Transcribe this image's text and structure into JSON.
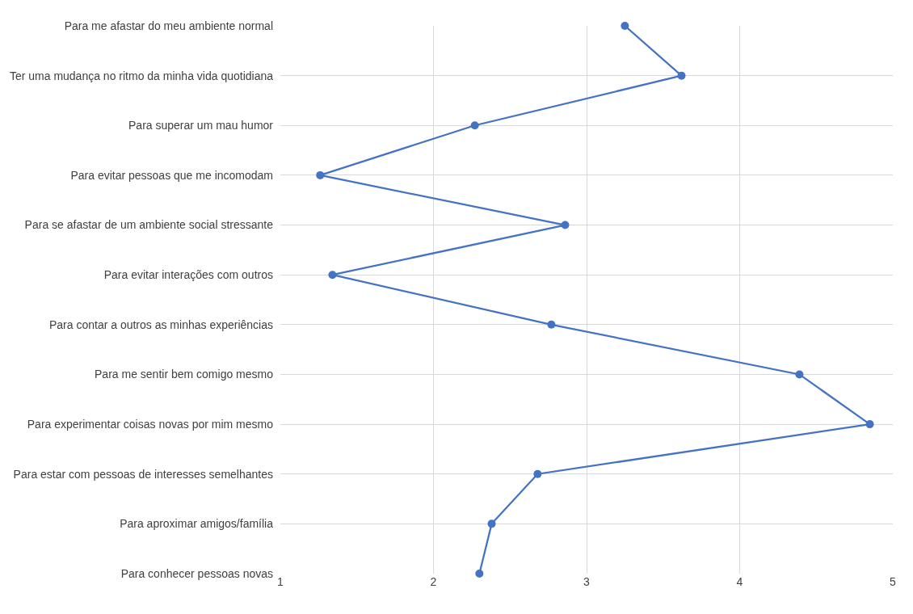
{
  "chart_data": {
    "type": "line",
    "orientation": "horizontal",
    "categories": [
      "Para me afastar do meu ambiente normal",
      "Ter uma mudança no ritmo da minha vida quotidiana",
      "Para superar um mau humor",
      "Para evitar pessoas que me incomodam",
      "Para se afastar de um ambiente social stressante",
      "Para evitar interações com outros",
      "Para contar a outros as minhas experiências",
      "Para me sentir bem comigo mesmo",
      "Para experimentar coisas novas por mim mesmo",
      "Para estar com pessoas de interesses semelhantes",
      "Para aproximar amigos/família",
      "Para conhecer pessoas novas"
    ],
    "series": [
      {
        "color": "#4472c4",
        "values": [
          3.25,
          3.62,
          2.27,
          1.26,
          2.86,
          1.34,
          2.77,
          4.39,
          4.85,
          2.68,
          2.38,
          2.3
        ]
      }
    ],
    "xlim": [
      1,
      5
    ],
    "xticks": [
      1,
      2,
      3,
      4,
      5
    ],
    "grid": true,
    "marker": "circle",
    "line_style": "solid"
  }
}
